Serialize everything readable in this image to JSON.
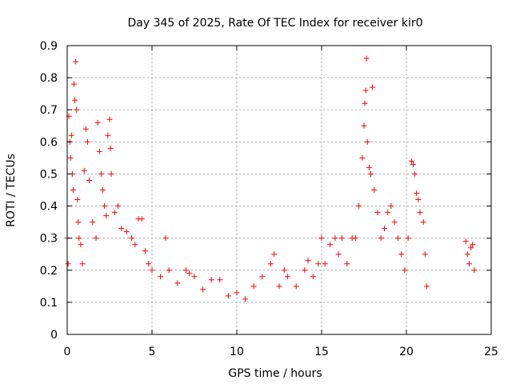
{
  "chart_data": {
    "type": "scatter",
    "title": "Day 345 of 2025, Rate Of TEC Index for receiver kir0",
    "xlabel": "GPS time / hours",
    "ylabel": "ROTI / TECUs",
    "xlim": [
      0,
      25
    ],
    "ylim": [
      0,
      0.9
    ],
    "xticks": [
      "0",
      "5",
      "10",
      "15",
      "20",
      "25"
    ],
    "yticks": [
      "0",
      "0.1",
      "0.2",
      "0.3",
      "0.4",
      "0.5",
      "0.6",
      "0.7",
      "0.8",
      "0.9"
    ],
    "grid": true,
    "marker": "plus",
    "color": "#ff0000",
    "series": [
      {
        "values": [
          [
            0.0,
            0.3
          ],
          [
            0.05,
            0.22
          ],
          [
            0.1,
            0.68
          ],
          [
            0.15,
            0.6
          ],
          [
            0.2,
            0.55
          ],
          [
            0.25,
            0.62
          ],
          [
            0.3,
            0.5
          ],
          [
            0.35,
            0.45
          ],
          [
            0.4,
            0.78
          ],
          [
            0.45,
            0.73
          ],
          [
            0.5,
            0.85
          ],
          [
            0.55,
            0.7
          ],
          [
            0.6,
            0.42
          ],
          [
            0.65,
            0.35
          ],
          [
            0.7,
            0.3
          ],
          [
            0.8,
            0.28
          ],
          [
            0.9,
            0.22
          ],
          [
            1.0,
            0.51
          ],
          [
            1.1,
            0.64
          ],
          [
            1.2,
            0.6
          ],
          [
            1.3,
            0.48
          ],
          [
            1.5,
            0.35
          ],
          [
            1.7,
            0.3
          ],
          [
            1.8,
            0.66
          ],
          [
            1.9,
            0.57
          ],
          [
            2.0,
            0.5
          ],
          [
            2.1,
            0.45
          ],
          [
            2.2,
            0.4
          ],
          [
            2.3,
            0.37
          ],
          [
            2.4,
            0.62
          ],
          [
            2.5,
            0.67
          ],
          [
            2.55,
            0.58
          ],
          [
            2.6,
            0.5
          ],
          [
            2.8,
            0.38
          ],
          [
            3.0,
            0.4
          ],
          [
            3.2,
            0.33
          ],
          [
            3.5,
            0.32
          ],
          [
            3.8,
            0.3
          ],
          [
            4.0,
            0.28
          ],
          [
            4.2,
            0.36
          ],
          [
            4.4,
            0.36
          ],
          [
            4.6,
            0.26
          ],
          [
            4.8,
            0.22
          ],
          [
            5.0,
            0.2
          ],
          [
            5.5,
            0.18
          ],
          [
            5.8,
            0.3
          ],
          [
            6.0,
            0.2
          ],
          [
            6.5,
            0.16
          ],
          [
            7.0,
            0.2
          ],
          [
            7.2,
            0.19
          ],
          [
            7.5,
            0.18
          ],
          [
            8.0,
            0.14
          ],
          [
            8.5,
            0.17
          ],
          [
            9.0,
            0.17
          ],
          [
            9.5,
            0.12
          ],
          [
            10.0,
            0.13
          ],
          [
            10.5,
            0.11
          ],
          [
            11.0,
            0.15
          ],
          [
            11.5,
            0.18
          ],
          [
            12.0,
            0.22
          ],
          [
            12.2,
            0.25
          ],
          [
            12.5,
            0.15
          ],
          [
            12.8,
            0.2
          ],
          [
            13.0,
            0.18
          ],
          [
            13.5,
            0.15
          ],
          [
            14.0,
            0.2
          ],
          [
            14.2,
            0.23
          ],
          [
            14.5,
            0.18
          ],
          [
            14.8,
            0.22
          ],
          [
            15.0,
            0.3
          ],
          [
            15.2,
            0.22
          ],
          [
            15.5,
            0.28
          ],
          [
            15.8,
            0.3
          ],
          [
            16.0,
            0.25
          ],
          [
            16.2,
            0.3
          ],
          [
            16.5,
            0.22
          ],
          [
            16.8,
            0.3
          ],
          [
            17.0,
            0.3
          ],
          [
            17.2,
            0.4
          ],
          [
            17.4,
            0.55
          ],
          [
            17.5,
            0.65
          ],
          [
            17.55,
            0.72
          ],
          [
            17.6,
            0.76
          ],
          [
            17.65,
            0.86
          ],
          [
            17.7,
            0.6
          ],
          [
            17.8,
            0.52
          ],
          [
            17.9,
            0.5
          ],
          [
            18.0,
            0.77
          ],
          [
            18.1,
            0.45
          ],
          [
            18.3,
            0.38
          ],
          [
            18.5,
            0.3
          ],
          [
            18.7,
            0.33
          ],
          [
            18.9,
            0.38
          ],
          [
            19.1,
            0.4
          ],
          [
            19.3,
            0.35
          ],
          [
            19.5,
            0.3
          ],
          [
            19.7,
            0.25
          ],
          [
            19.9,
            0.2
          ],
          [
            20.1,
            0.3
          ],
          [
            20.3,
            0.54
          ],
          [
            20.4,
            0.53
          ],
          [
            20.5,
            0.5
          ],
          [
            20.6,
            0.44
          ],
          [
            20.7,
            0.42
          ],
          [
            20.8,
            0.38
          ],
          [
            21.0,
            0.35
          ],
          [
            21.1,
            0.25
          ],
          [
            21.2,
            0.15
          ],
          [
            23.5,
            0.29
          ],
          [
            23.6,
            0.25
          ],
          [
            23.7,
            0.22
          ],
          [
            23.8,
            0.27
          ],
          [
            23.9,
            0.28
          ],
          [
            24.0,
            0.2
          ]
        ]
      }
    ]
  }
}
